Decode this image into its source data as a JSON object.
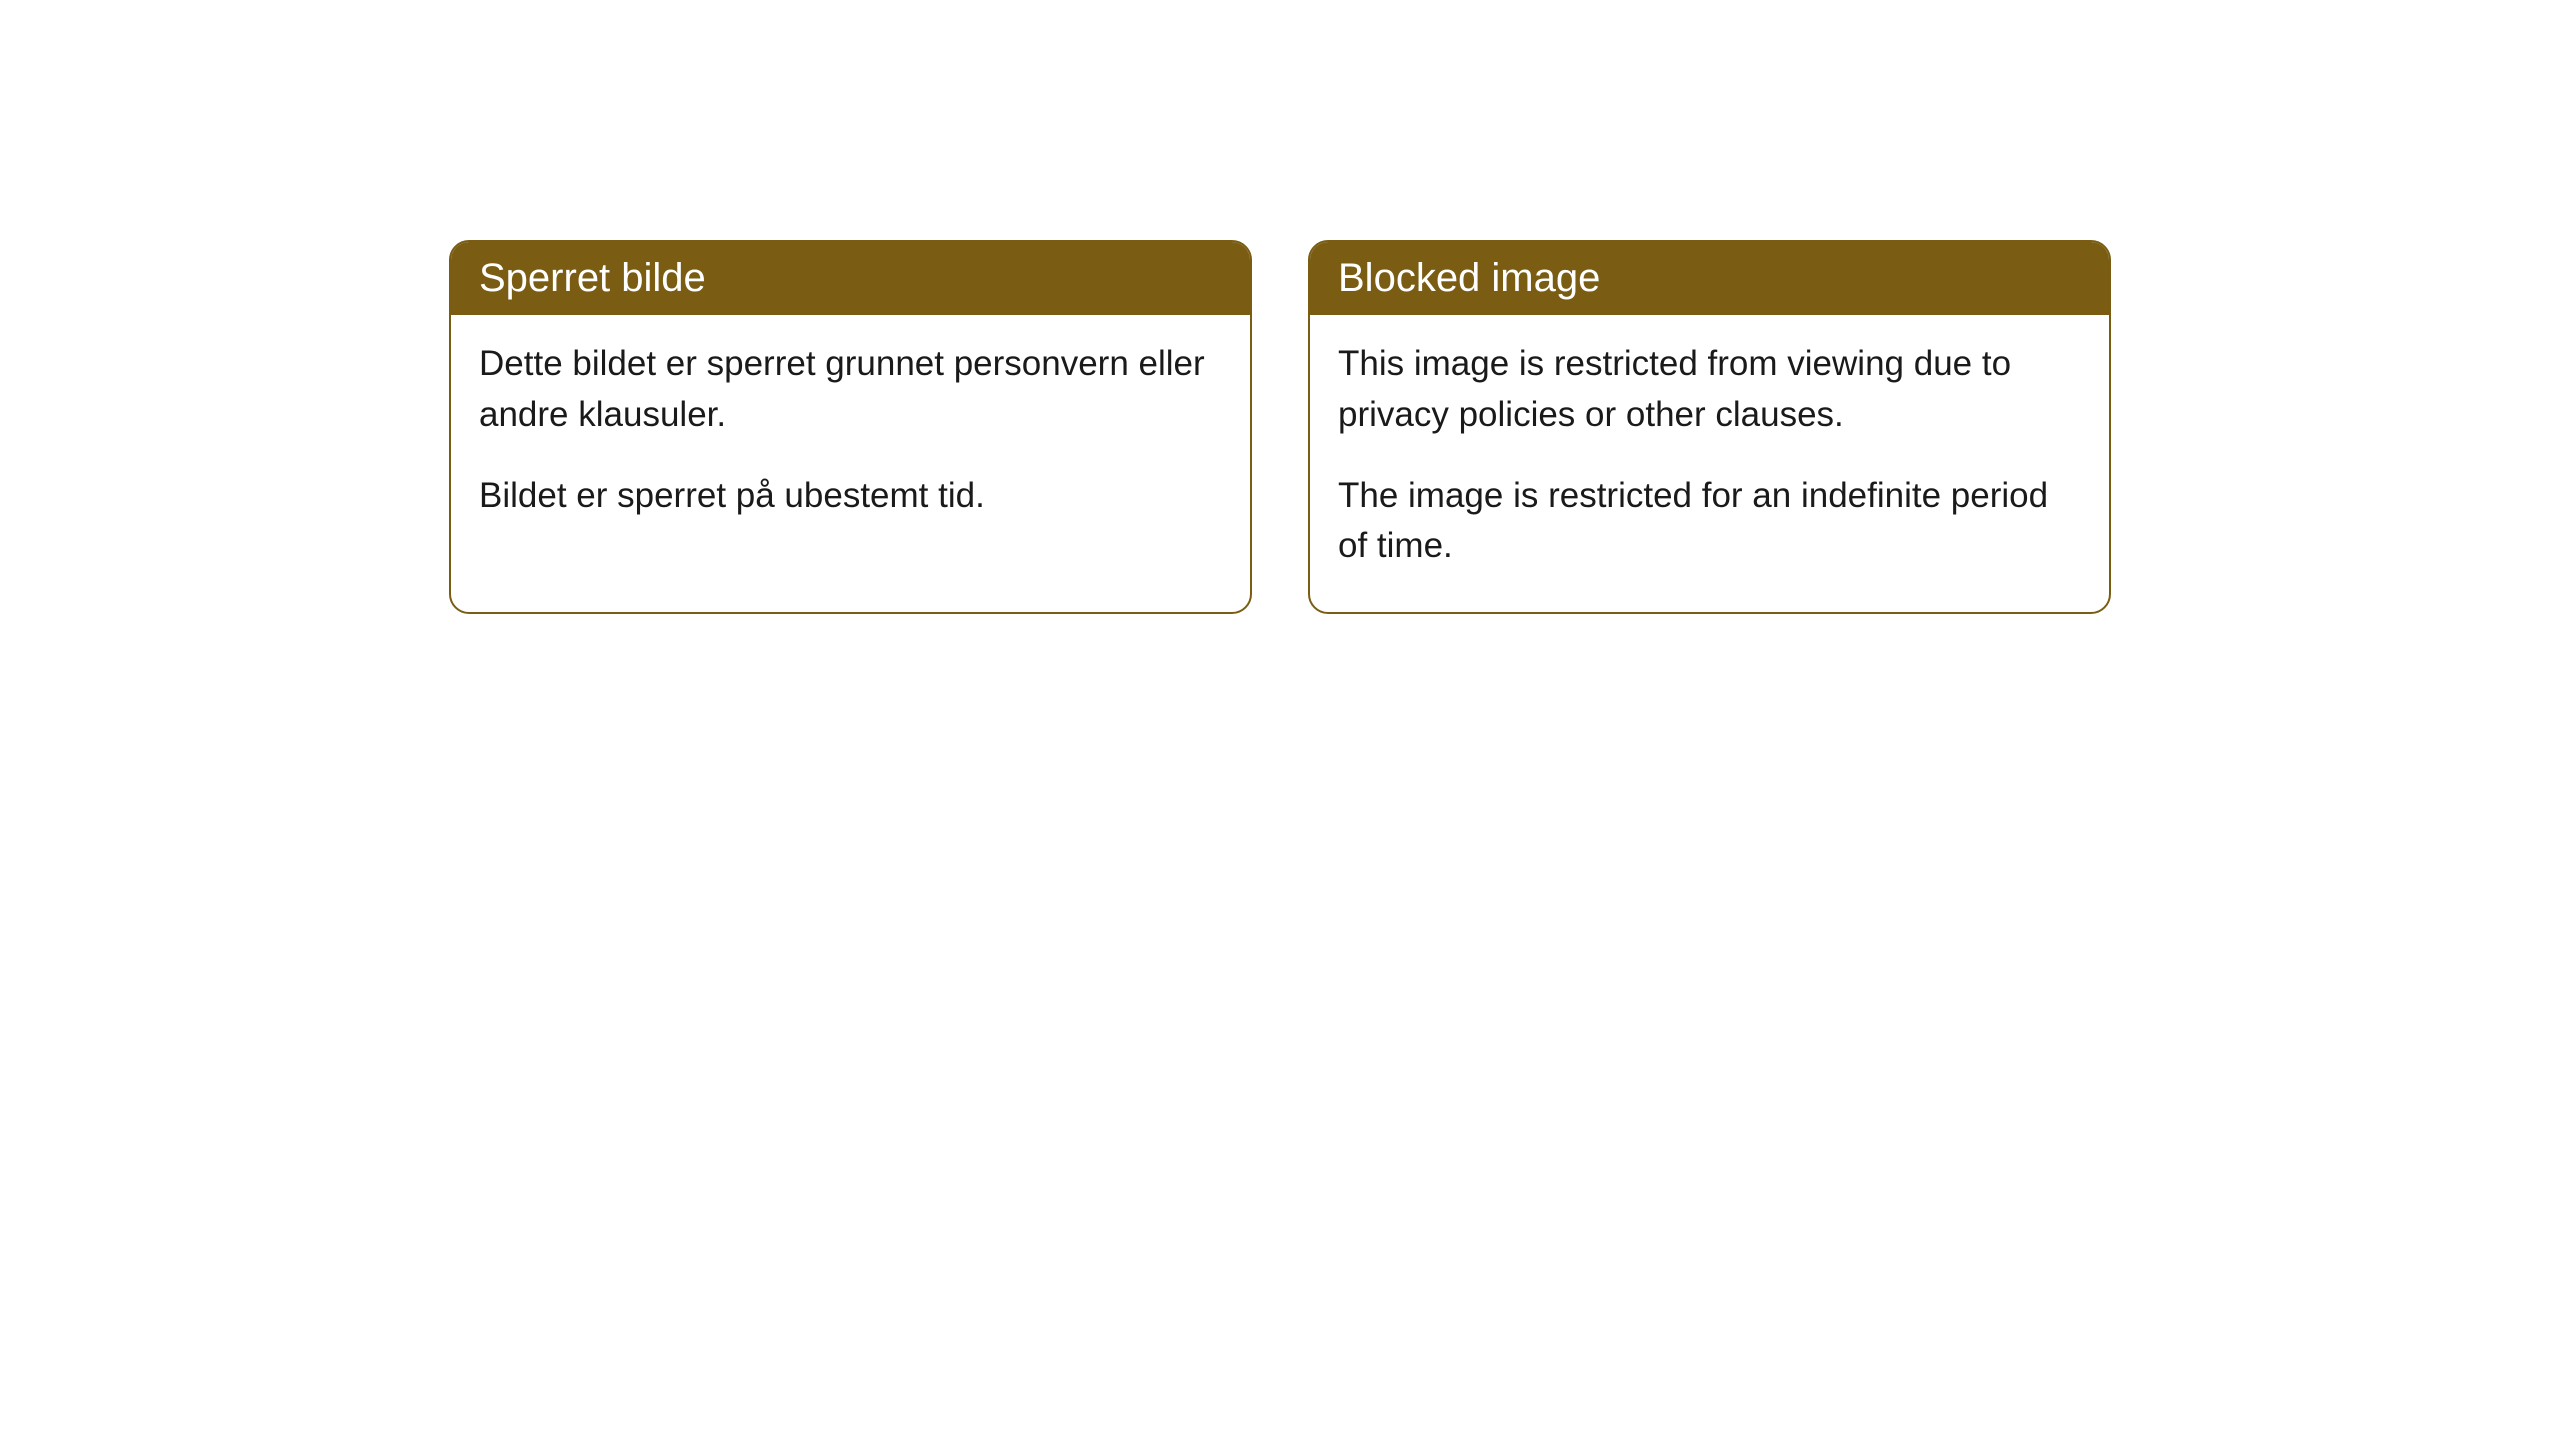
{
  "cards": [
    {
      "title": "Sperret bilde",
      "paragraph1": "Dette bildet er sperret grunnet personvern eller andre klausuler.",
      "paragraph2": "Bildet er sperret på ubestemt tid."
    },
    {
      "title": "Blocked image",
      "paragraph1": "This image is restricted from viewing due to privacy policies or other clauses.",
      "paragraph2": "The image is restricted for an indefinite period of time."
    }
  ],
  "style": {
    "header_bg_color": "#7a5d13",
    "header_text_color": "#ffffff",
    "border_color": "#7a5d13",
    "body_bg_color": "#ffffff",
    "body_text_color": "#1a1a1a",
    "border_radius": 20,
    "title_fontsize": 40,
    "body_fontsize": 35
  }
}
